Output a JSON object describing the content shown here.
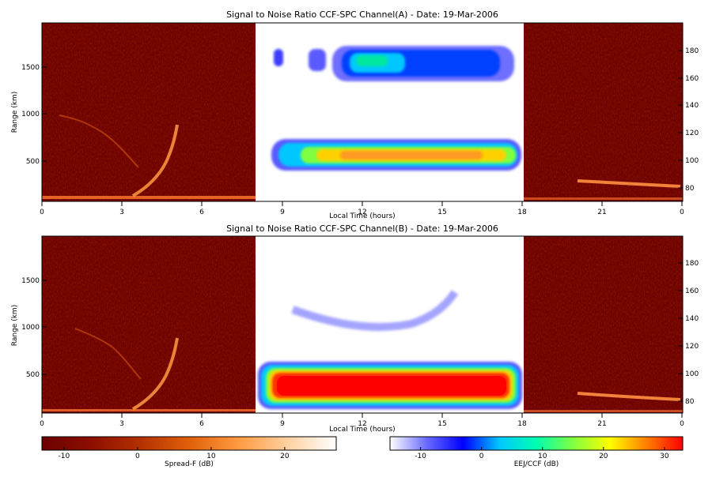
{
  "chart_data": [
    {
      "type": "heatmap",
      "title": "Signal to Noise Ratio CCF-SPC Channel(A) - Date: 19-Mar-2006",
      "xlabel": "Local Time (hours)",
      "ylabel": "Range (km)",
      "xlim": [
        0,
        24
      ],
      "ylim_left": [
        80,
        1950
      ],
      "ylim_right": [
        70,
        200
      ],
      "x_ticks": [
        "0",
        "3",
        "6",
        "9",
        "12",
        "15",
        "18",
        "21",
        "0"
      ],
      "y_ticks_left": [
        "500",
        "1000",
        "1500"
      ],
      "y_ticks_right": [
        "80",
        "100",
        "120",
        "140",
        "160",
        "180"
      ],
      "daytime_window_hours": [
        8,
        18
      ],
      "features": [
        {
          "name": "Spread-F",
          "hours": [
            1.5,
            4.9
          ],
          "range_km": [
            150,
            1000
          ]
        },
        {
          "name": "EEJ/CCF lower layer",
          "hours": [
            8.5,
            18
          ],
          "range_km": [
            430,
            700
          ]
        },
        {
          "name": "EEJ/CCF upper layer",
          "hours": [
            8.9,
            17.5
          ],
          "range_km": [
            1450,
            1700
          ]
        }
      ]
    },
    {
      "type": "heatmap",
      "title": "Signal to Noise Ratio CCF-SPC Channel(B) - Date: 19-Mar-2006",
      "xlabel": "Local Time (hours)",
      "ylabel": "Range (km)",
      "xlim": [
        0,
        24
      ],
      "ylim_left": [
        80,
        1950
      ],
      "ylim_right": [
        70,
        200
      ],
      "x_ticks": [
        "0",
        "3",
        "6",
        "9",
        "12",
        "15",
        "18",
        "21",
        "0"
      ],
      "y_ticks_left": [
        "500",
        "1000",
        "1500"
      ],
      "y_ticks_right": [
        "80",
        "100",
        "120",
        "140",
        "160",
        "180"
      ],
      "daytime_window_hours": [
        8,
        18
      ],
      "features": [
        {
          "name": "Spread-F",
          "hours": [
            1.5,
            4.9
          ],
          "range_km": [
            150,
            1000
          ]
        },
        {
          "name": "EEJ/CCF lower layer",
          "hours": [
            8,
            18
          ],
          "range_km": [
            150,
            600
          ]
        },
        {
          "name": "EEJ/CCF echo arc",
          "hours": [
            10,
            15.5
          ],
          "range_km": [
            950,
            1350
          ]
        }
      ]
    }
  ],
  "colorbars": [
    {
      "label": "Spread-F (dB)",
      "range": [
        -13,
        27
      ],
      "ticks": [
        "-10",
        "0",
        "10",
        "20"
      ],
      "tick_values": [
        -10,
        0,
        10,
        20
      ],
      "colors": [
        "#6b0000",
        "#8c0f00",
        "#b33000",
        "#e0600a",
        "#ff9a40",
        "#ffd0a0",
        "#ffffff"
      ]
    },
    {
      "label": "EEJ/CCF (dB)",
      "range": [
        -15,
        33
      ],
      "ticks": [
        "-10",
        "0",
        "10",
        "20",
        "30"
      ],
      "tick_values": [
        -10,
        0,
        10,
        20,
        30
      ],
      "colors": [
        "#ffffff",
        "#6a6aff",
        "#0000ff",
        "#00c8ff",
        "#00ffb0",
        "#80ff40",
        "#ffff00",
        "#ff8000",
        "#ff0000"
      ]
    }
  ],
  "colors": {
    "night_background": "#6b0000",
    "day_background": "#ffffff"
  }
}
